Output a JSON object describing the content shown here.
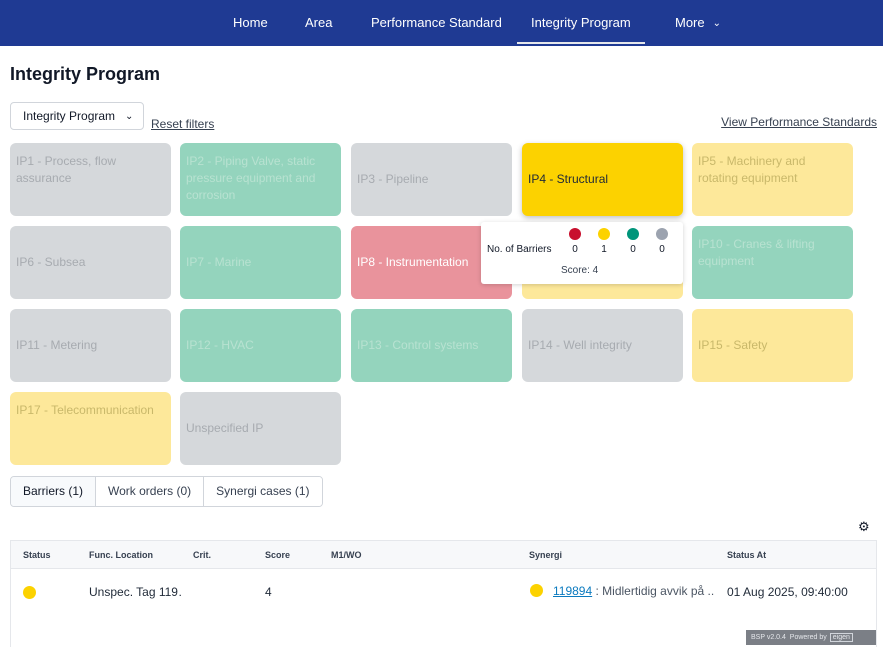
{
  "nav": {
    "items": [
      "Home",
      "Area",
      "Performance Standard",
      "Integrity Program",
      "More"
    ],
    "active": "Integrity Program"
  },
  "page": {
    "title": "Integrity Program",
    "filter_label": "Integrity Program",
    "reset_label": "Reset filters",
    "view_ps_label": "View Performance Standards"
  },
  "tiles": [
    {
      "label": "IP1 - Process, flow assurance",
      "color": "grey"
    },
    {
      "label": "IP2 - Piping Valve, static pressure equipment and corrosion",
      "color": "green"
    },
    {
      "label": "IP3 - Pipeline",
      "color": "grey"
    },
    {
      "label": "IP4 - Structural",
      "color": "yellow-strong"
    },
    {
      "label": "IP5 - Machinery and rotating equipment",
      "color": "yellow"
    },
    {
      "label": "IP6 - Subsea",
      "color": "grey"
    },
    {
      "label": "IP7 - Marine",
      "color": "green"
    },
    {
      "label": "IP8 - Instrumentation",
      "color": "red"
    },
    {
      "label": "",
      "color": "yellow"
    },
    {
      "label": "IP10 - Cranes & lifting equipment",
      "color": "green"
    },
    {
      "label": "IP11 - Metering",
      "color": "grey"
    },
    {
      "label": "IP12 - HVAC",
      "color": "green"
    },
    {
      "label": "IP13 - Control systems",
      "color": "green"
    },
    {
      "label": "IP14 - Well integrity",
      "color": "grey"
    },
    {
      "label": "IP15 - Safety",
      "color": "yellow"
    },
    {
      "label": "IP17 - Telecommunication",
      "color": "yellow"
    },
    {
      "label": "Unspecified IP",
      "color": "grey"
    }
  ],
  "tooltip": {
    "label": "No. of Barriers",
    "counts": [
      {
        "color": "#c8102e",
        "value": "0"
      },
      {
        "color": "#fcd200",
        "value": "1"
      },
      {
        "color": "#00957a",
        "value": "0"
      },
      {
        "color": "#9ca3af",
        "value": "0"
      }
    ],
    "score": "Score: 4"
  },
  "tabs": [
    "Barriers (1)",
    "Work orders (0)",
    "Synergi cases (1)"
  ],
  "table": {
    "headers": [
      "Status",
      "Func. Location",
      "Crit.",
      "Score",
      "M1/WO",
      "Synergi",
      "Status At"
    ],
    "rows": [
      {
        "status_color": "#fcd200",
        "func_location": "Unspec. Tag 119…",
        "crit": "",
        "score": "4",
        "m1wo": "",
        "synergi_id": "119894",
        "synergi_text": " : Midlertidig avvik på ..",
        "status_at": "01 Aug 2025, 09:40:00"
      }
    ]
  },
  "footer": {
    "version": "BSP v2.0.4",
    "powered": "Powered by",
    "brand": "eigen"
  }
}
